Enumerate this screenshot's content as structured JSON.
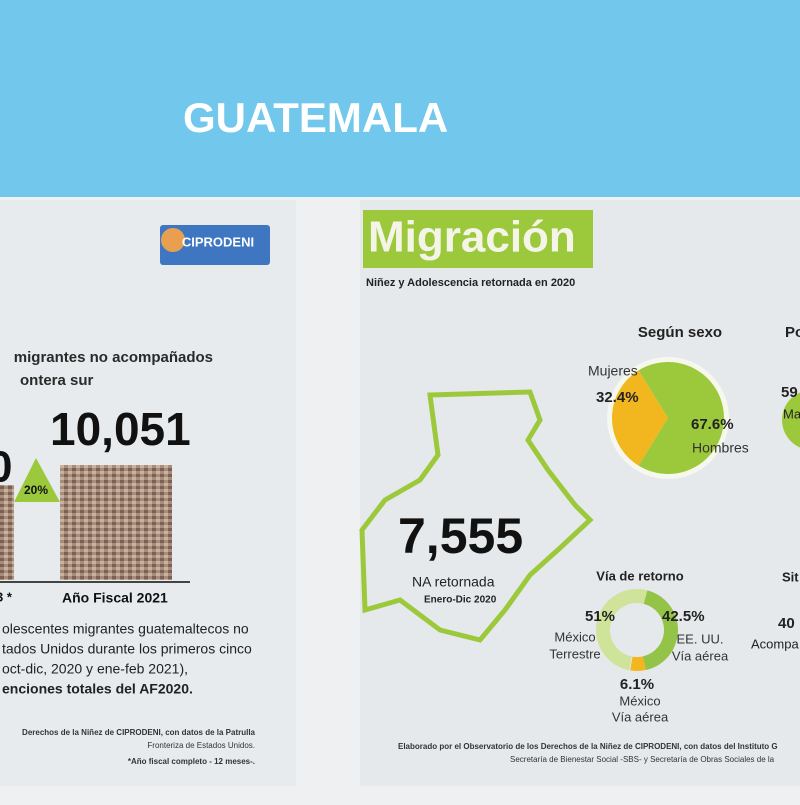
{
  "header": {
    "title": "GUATEMALA"
  },
  "left_panel": {
    "logo": "CIPRODENI",
    "heading": [
      "migrantes no acompañados",
      "ontera sur"
    ],
    "bars": {
      "partial_value": "0",
      "value": "10,051",
      "change": "20%",
      "labels": [
        "3 *",
        "Año Fiscal 2021"
      ]
    },
    "paragraph": [
      "olescentes migrantes guatemaltecos no",
      "tados Unidos durante los primeros cinco",
      "oct-dic, 2020 y ene-feb 2021),",
      "enciones totales del AF2020."
    ],
    "source": [
      "Derechos de la Niñez de CIPRODENI, con datos de la Patrulla",
      "Fronteriza de Estados Unidos.",
      "*Año fiscal completo - 12 meses-."
    ]
  },
  "right_panel": {
    "title": "Migración",
    "subtitle": "Niñez y Adolescencia retornada en 2020",
    "total": {
      "value": "7,555",
      "label": "NA retornada",
      "period": "Enero-Dic 2020"
    },
    "sexo": {
      "title": "Según sexo",
      "labels": [
        "Mujeres",
        "Hombres"
      ],
      "values": [
        32.4,
        67.6
      ],
      "value_labels": [
        "32.4%",
        "67.6%"
      ],
      "colors": [
        "#f2b61e",
        "#9cc93c"
      ]
    },
    "via": {
      "title": "Vía de retorno",
      "labels": [
        [
          "México",
          "Terrestre"
        ],
        [
          "EE. UU.",
          "Vía aérea"
        ],
        [
          "México",
          "Vía aérea"
        ]
      ],
      "values": [
        51,
        42.5,
        6.1
      ],
      "value_labels": [
        "51%",
        "42.5%",
        "6.1%"
      ],
      "colors": [
        "#cfe39a",
        "#93c447",
        "#f2b61e"
      ]
    },
    "cut_texts": [
      "Po",
      "59",
      "Ma",
      "Sit",
      "40",
      "Acompa"
    ],
    "source": [
      "Elaborado por el Observatorio de los Derechos de la Niñez de CIPRODENI, con datos del Instituto G",
      "Secretaría de Bienestar Social -SBS- y Secretaría de Obras Sociales de la"
    ]
  }
}
